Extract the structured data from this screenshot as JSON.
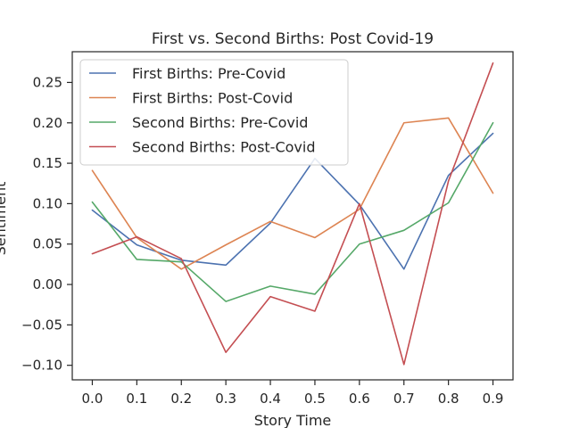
{
  "chart_data": {
    "type": "line",
    "title": "First vs. Second Births: Post Covid-19",
    "xlabel": "Story Time",
    "ylabel": "Sentiment",
    "x": [
      0.0,
      0.1,
      0.2,
      0.3,
      0.4,
      0.5,
      0.6,
      0.7,
      0.8,
      0.9
    ],
    "x_ticks": [
      "0.0",
      "0.1",
      "0.2",
      "0.3",
      "0.4",
      "0.5",
      "0.6",
      "0.7",
      "0.8",
      "0.9"
    ],
    "y_ticks": [
      "0.25",
      "0.20",
      "0.15",
      "0.10",
      "0.05",
      "0.00",
      "−0.05",
      "−0.10"
    ],
    "y_tick_values": [
      0.25,
      0.2,
      0.15,
      0.1,
      0.05,
      0.0,
      -0.05,
      -0.1
    ],
    "xlim": [
      -0.045,
      0.945
    ],
    "ylim": [
      -0.118,
      0.288
    ],
    "grid": false,
    "legend_position": "top-left",
    "series": [
      {
        "name": "First Births: Pre-Covid",
        "color": "#4c72b0",
        "values": [
          0.092,
          0.049,
          0.03,
          0.024,
          0.076,
          0.156,
          0.099,
          0.019,
          0.135,
          0.187
        ]
      },
      {
        "name": "First Births: Post-Covid",
        "color": "#dd8452",
        "values": [
          0.141,
          0.058,
          0.019,
          0.049,
          0.078,
          0.058,
          0.093,
          0.2,
          0.206,
          0.113
        ]
      },
      {
        "name": "Second Births: Pre-Covid",
        "color": "#55a868",
        "values": [
          0.102,
          0.031,
          0.028,
          -0.021,
          -0.002,
          -0.012,
          0.05,
          0.067,
          0.101,
          0.2
        ]
      },
      {
        "name": "Second Births: Post-Covid",
        "color": "#c44e52",
        "values": [
          0.038,
          0.059,
          0.032,
          -0.084,
          -0.015,
          -0.033,
          0.1,
          -0.099,
          0.128,
          0.274
        ]
      }
    ]
  }
}
